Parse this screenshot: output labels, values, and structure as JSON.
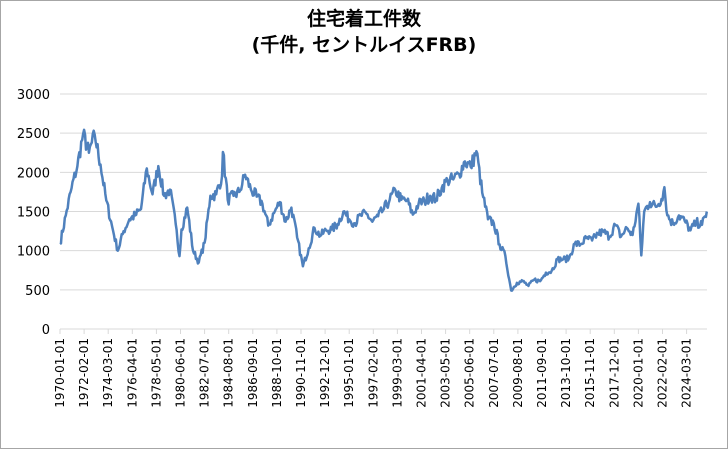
{
  "chart_data": {
    "type": "line",
    "title": "住宅着工件数",
    "subtitle": "(千件, セントルイスFRB)",
    "xlabel": "",
    "ylabel": "",
    "ylim": [
      0,
      3000
    ],
    "yticks": [
      0,
      500,
      1000,
      1500,
      2000,
      2500,
      3000
    ],
    "xticks": [
      "1970-01-01",
      "1972-02-01",
      "1974-03-01",
      "1976-04-01",
      "1978-05-01",
      "1980-06-01",
      "1982-07-01",
      "1984-08-01",
      "1986-09-01",
      "1988-10-01",
      "1990-11-01",
      "1992-12-01",
      "1995-01-01",
      "1997-02-01",
      "1999-03-01",
      "2001-04-01",
      "2003-05-01",
      "2005-06-01",
      "2007-07-01",
      "2009-08-01",
      "2011-09-01",
      "2013-10-01",
      "2015-11-01",
      "2017-12-01",
      "2020-01-01",
      "2022-02-01",
      "2024-03-01"
    ],
    "grid": true,
    "color": "#4f81bd",
    "series": [
      {
        "x": [
          "1970-01",
          "1970-07",
          "1971-01",
          "1971-07",
          "1972-01",
          "1972-07",
          "1973-01",
          "1973-07",
          "1974-01",
          "1974-07",
          "1975-01",
          "1975-07",
          "1976-01",
          "1976-07",
          "1977-01",
          "1977-07",
          "1978-01",
          "1978-07",
          "1979-01",
          "1979-07",
          "1980-01",
          "1980-05",
          "1980-07",
          "1981-01",
          "1981-07",
          "1982-01",
          "1982-07",
          "1983-01",
          "1983-07",
          "1984-01",
          "1984-02",
          "1984-07",
          "1985-01",
          "1985-07",
          "1986-01",
          "1986-07",
          "1987-01",
          "1987-07",
          "1988-01",
          "1988-07",
          "1989-01",
          "1989-07",
          "1990-01",
          "1990-07",
          "1991-01",
          "1991-07",
          "1992-01",
          "1992-07",
          "1993-01",
          "1993-07",
          "1994-01",
          "1994-07",
          "1995-01",
          "1995-07",
          "1996-01",
          "1996-07",
          "1997-01",
          "1997-07",
          "1998-01",
          "1998-07",
          "1999-01",
          "1999-07",
          "2000-01",
          "2000-07",
          "2001-01",
          "2001-07",
          "2002-01",
          "2002-07",
          "2003-01",
          "2003-07",
          "2004-01",
          "2004-07",
          "2005-01",
          "2005-07",
          "2006-01",
          "2006-07",
          "2007-01",
          "2007-07",
          "2008-01",
          "2008-07",
          "2009-01",
          "2009-07",
          "2010-01",
          "2010-07",
          "2011-01",
          "2011-07",
          "2012-01",
          "2012-07",
          "2013-01",
          "2013-07",
          "2014-01",
          "2014-07",
          "2015-01",
          "2015-07",
          "2016-01",
          "2016-07",
          "2017-01",
          "2017-07",
          "2018-01",
          "2018-07",
          "2019-01",
          "2019-07",
          "2020-01",
          "2020-04",
          "2020-07",
          "2021-01",
          "2021-07",
          "2022-01",
          "2022-04",
          "2022-07",
          "2023-01",
          "2023-07",
          "2024-01",
          "2024-07",
          "2025-01",
          "2025-07",
          "2025-12"
        ],
        "values": [
          1085,
          1450,
          1800,
          2080,
          2490,
          2250,
          2480,
          2100,
          1640,
          1310,
          1000,
          1250,
          1400,
          1450,
          1530,
          2050,
          1720,
          2080,
          1700,
          1780,
          1340,
          930,
          1270,
          1550,
          1000,
          850,
          1100,
          1700,
          1720,
          1950,
          2260,
          1650,
          1700,
          1750,
          1970,
          1780,
          1690,
          1600,
          1320,
          1480,
          1620,
          1370,
          1550,
          1170,
          800,
          1030,
          1290,
          1190,
          1260,
          1270,
          1340,
          1500,
          1400,
          1350,
          1450,
          1470,
          1370,
          1440,
          1530,
          1650,
          1770,
          1650,
          1640,
          1460,
          1600,
          1630,
          1700,
          1660,
          1800,
          1900,
          1910,
          1980,
          2140,
          2070,
          2270,
          1740,
          1400,
          1350,
          1080,
          930,
          490,
          590,
          610,
          550,
          630,
          610,
          720,
          740,
          890,
          890,
          900,
          1090,
          1080,
          1160,
          1130,
          1220,
          1240,
          1180,
          1330,
          1180,
          1290,
          1200,
          1600,
          940,
          1500,
          1620,
          1560,
          1660,
          1810,
          1450,
          1340,
          1450,
          1380,
          1260,
          1360,
          1330,
          1500
        ]
      }
    ]
  }
}
